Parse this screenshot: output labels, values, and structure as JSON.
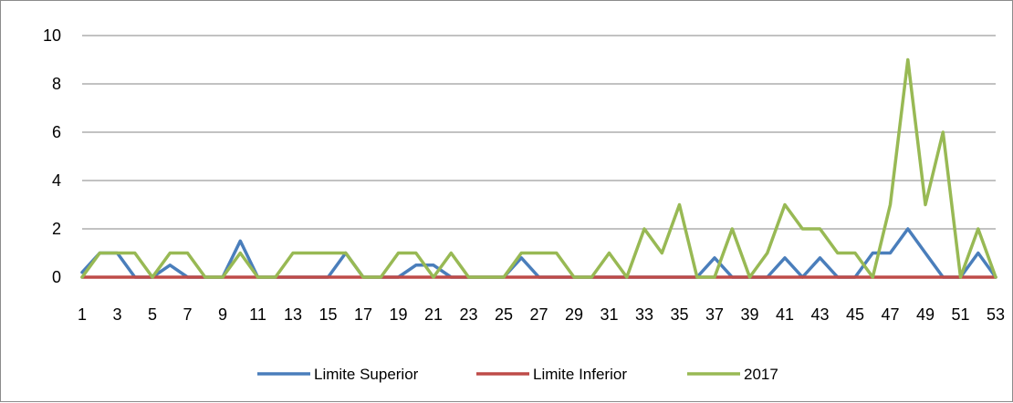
{
  "chart_data": {
    "type": "line",
    "title": "",
    "xlabel": "",
    "ylabel": "",
    "ylim": [
      0,
      10
    ],
    "yticks": [
      0,
      2,
      4,
      6,
      8,
      10
    ],
    "x": [
      1,
      2,
      3,
      4,
      5,
      6,
      7,
      8,
      9,
      10,
      11,
      12,
      13,
      14,
      15,
      16,
      17,
      18,
      19,
      20,
      21,
      22,
      23,
      24,
      25,
      26,
      27,
      28,
      29,
      30,
      31,
      32,
      33,
      34,
      35,
      36,
      37,
      38,
      39,
      40,
      41,
      42,
      43,
      44,
      45,
      46,
      47,
      48,
      49,
      50,
      51,
      52,
      53
    ],
    "xticks": [
      1,
      3,
      5,
      7,
      9,
      11,
      13,
      15,
      17,
      19,
      21,
      23,
      25,
      27,
      29,
      31,
      33,
      35,
      37,
      39,
      41,
      43,
      45,
      47,
      49,
      51,
      53
    ],
    "grid": "horizontal",
    "legend_position": "bottom",
    "series": [
      {
        "name": "Limite Superior",
        "color": "#4a7ebb",
        "values": [
          0.2,
          1,
          1,
          0,
          0,
          0.5,
          0,
          0,
          0,
          1.5,
          0,
          0,
          0,
          0,
          0,
          1,
          0,
          0,
          0,
          0.5,
          0.5,
          0,
          0,
          0,
          0,
          0.8,
          0,
          0,
          0,
          0,
          0,
          0,
          0,
          0,
          0,
          0,
          0.8,
          0,
          0,
          0,
          0.8,
          0,
          0.8,
          0,
          0,
          1,
          1,
          2,
          1,
          0,
          0,
          1,
          0
        ]
      },
      {
        "name": "Limite Inferior",
        "color": "#be4b48",
        "values": [
          0,
          0,
          0,
          0,
          0,
          0,
          0,
          0,
          0,
          0,
          0,
          0,
          0,
          0,
          0,
          0,
          0,
          0,
          0,
          0,
          0,
          0,
          0,
          0,
          0,
          0,
          0,
          0,
          0,
          0,
          0,
          0,
          0,
          0,
          0,
          0,
          0,
          0,
          0,
          0,
          0,
          0,
          0,
          0,
          0,
          0,
          0,
          0,
          0,
          0,
          0,
          0,
          0
        ]
      },
      {
        "name": "2017",
        "color": "#98b954",
        "values": [
          0,
          1,
          1,
          1,
          0,
          1,
          1,
          0,
          0,
          1,
          0,
          0,
          1,
          1,
          1,
          1,
          0,
          0,
          1,
          1,
          0,
          1,
          0,
          0,
          0,
          1,
          1,
          1,
          0,
          0,
          1,
          0,
          2,
          1,
          3,
          0,
          0,
          2,
          0,
          1,
          3,
          2,
          2,
          1,
          1,
          0,
          3,
          9,
          3,
          6,
          0,
          2,
          0
        ]
      }
    ]
  }
}
